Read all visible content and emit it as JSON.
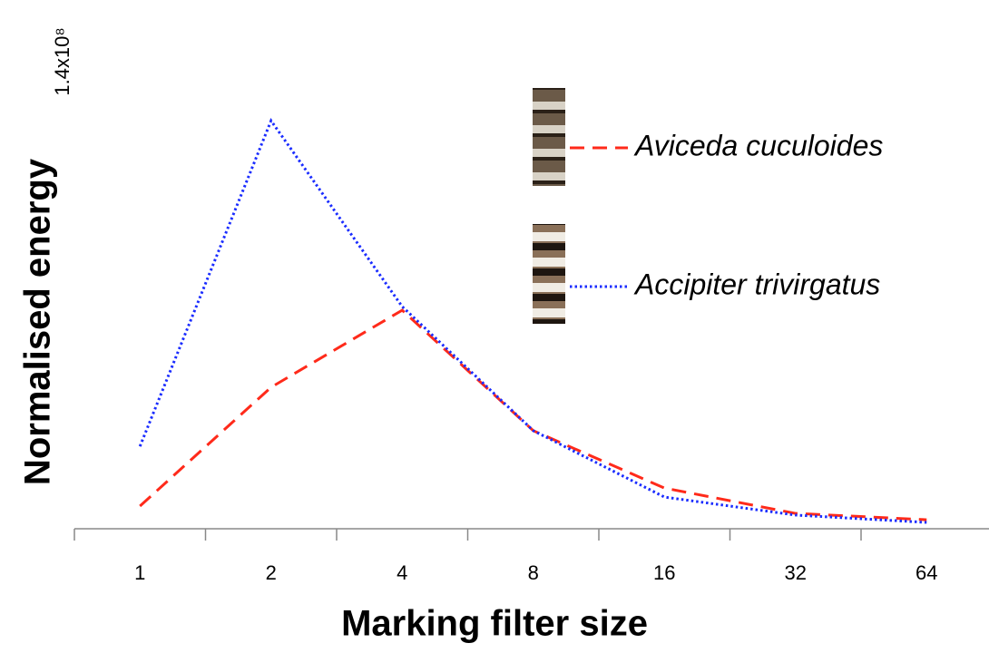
{
  "chart_data": {
    "type": "line",
    "y_label": "Normalised energy",
    "x_label": "Marking filter size",
    "categories": [
      "1",
      "2",
      "4",
      "8",
      "16",
      "32",
      "64"
    ],
    "series": [
      {
        "name": "Aviceda cuculoides",
        "color": "#ff2a1a",
        "style": "dashed",
        "values": [
          6800000,
          42400000,
          65500000,
          29400000,
          12200000,
          4600000,
          2700000
        ]
      },
      {
        "name": "Accipiter trivirgatus",
        "color": "#1a2cff",
        "style": "dotted",
        "values": [
          24700000,
          122300000,
          66600000,
          29400000,
          9500000,
          4100000,
          1900000
        ]
      }
    ],
    "ylim": [
      0,
      140000000
    ],
    "yticks": [
      {
        "value": 140000000,
        "label": "1.4x10⁸"
      }
    ],
    "grid": false
  }
}
